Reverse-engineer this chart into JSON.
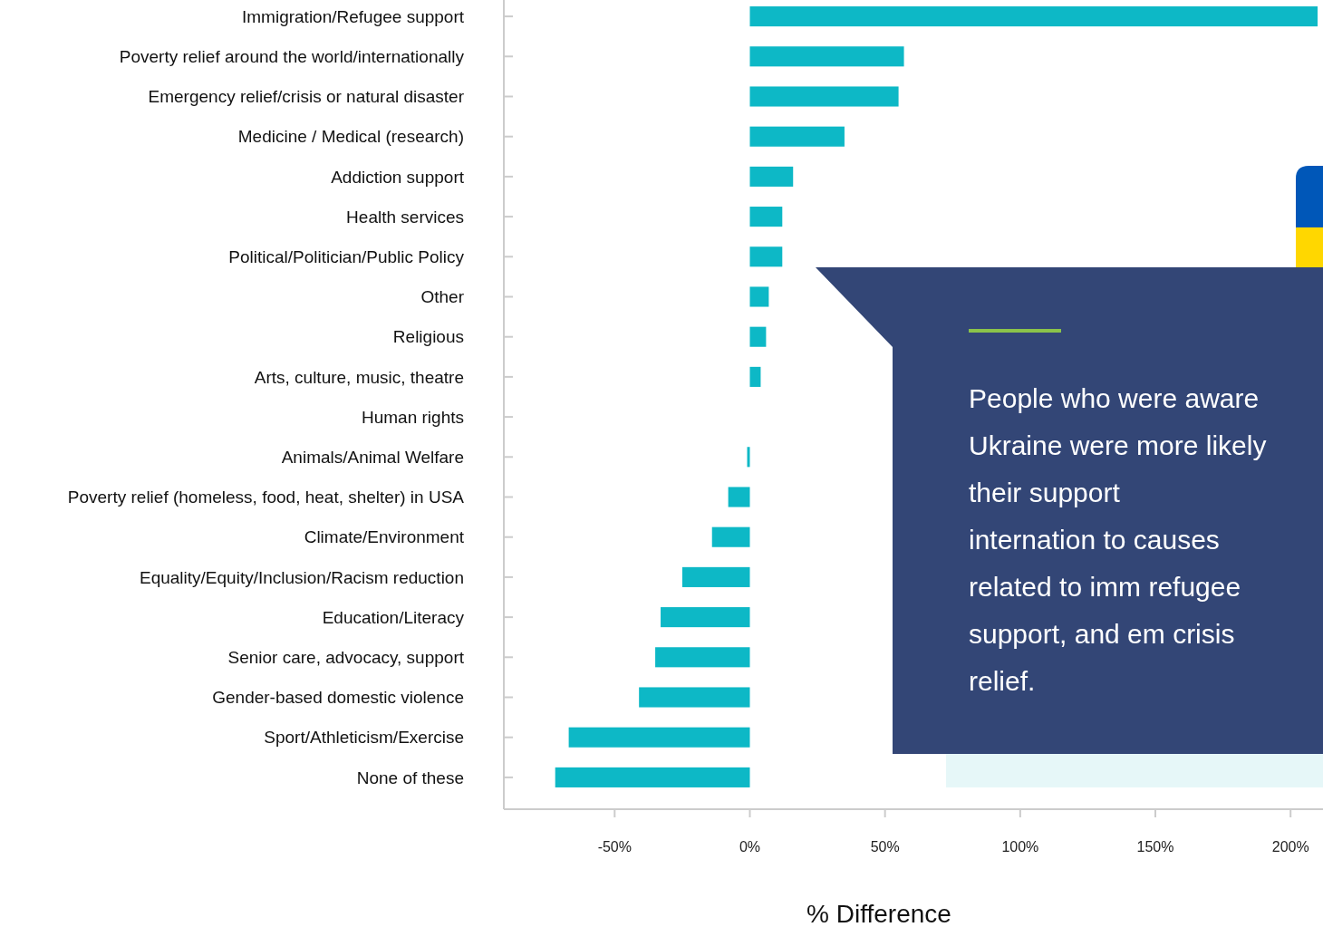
{
  "chart_data": {
    "type": "bar",
    "orientation": "horizontal",
    "xlabel": "% Difference",
    "categories": [
      "Immigration/Refugee support",
      "Poverty relief around the world/internationally",
      "Emergency relief/crisis or natural disaster",
      "Medicine / Medical (research)",
      "Addiction support",
      "Health services",
      "Political/Politician/Public Policy",
      "Other",
      "Religious",
      "Arts, culture, music, theatre",
      "Human rights",
      "Animals/Animal Welfare",
      "Poverty relief (homeless, food, heat, shelter) in USA",
      "Climate/Environment",
      "Equality/Equity/Inclusion/Racism reduction",
      "Education/Literacy",
      "Senior care, advocacy, support",
      "Gender-based domestic violence",
      "Sport/Athleticism/Exercise",
      "None of these"
    ],
    "values": [
      210,
      57,
      55,
      35,
      16,
      12,
      12,
      7,
      6,
      4,
      0,
      -1,
      -8,
      -14,
      -25,
      -33,
      -35,
      -41,
      -67,
      -72
    ],
    "color": "#0db8c6",
    "xlim": [
      -91,
      212
    ],
    "xticks": [
      {
        "value": -50,
        "label": "-50%"
      },
      {
        "value": 0,
        "label": "0%"
      },
      {
        "value": 50,
        "label": "50%"
      },
      {
        "value": 100,
        "label": "100%"
      },
      {
        "value": 150,
        "label": "150%"
      },
      {
        "value": 200,
        "label": "200%"
      }
    ],
    "grid": false,
    "annotations": [
      "People who were aware Ukraine were more likely their support internation to causes related to imm refugee support, and em crisis relief."
    ]
  }
}
